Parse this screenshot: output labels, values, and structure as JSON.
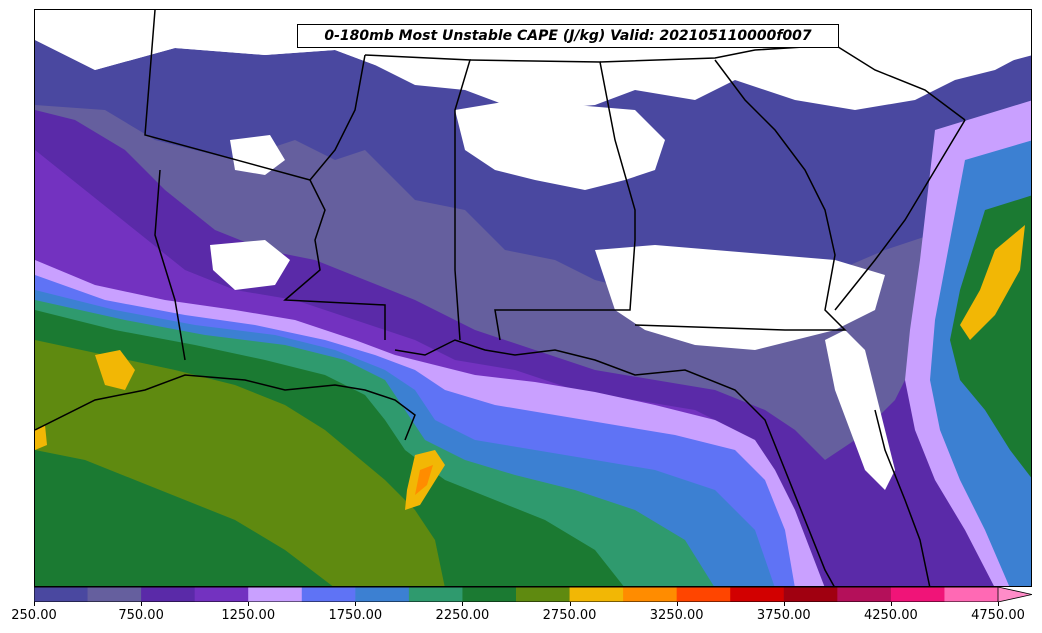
{
  "map": {
    "title": "0-180mb Most Unstable CAPE (J/kg) Valid: 202105110000f007",
    "colors": {
      "c250": "#4a48a0",
      "c500": "#655f9e",
      "c750": "#5a2aa8",
      "c1000": "#7332c0",
      "c1250": "#c9a0ff",
      "c1500": "#5f73f5",
      "c1750": "#3c80d2",
      "c2000": "#2f9a6e",
      "c2250": "#1b7a32",
      "c2500": "#5f8a10",
      "c2750": "#f2b705",
      "c3000": "#ff8c00",
      "c3250": "#ff4500",
      "c3500": "#d20000",
      "c3750": "#a00010",
      "c4000": "#b4105a",
      "c4250": "#f01478",
      "c4500": "#ff69b4",
      "border": "#000000"
    }
  },
  "colorbar": {
    "levels": [
      250,
      500,
      750,
      1000,
      1250,
      1500,
      1750,
      2000,
      2250,
      2500,
      2750,
      3000,
      3250,
      3500,
      3750,
      4000,
      4250,
      4500,
      4750
    ],
    "colors": [
      "#4a48a0",
      "#655f9e",
      "#5a2aa8",
      "#7332c0",
      "#c9a0ff",
      "#5f73f5",
      "#3c80d2",
      "#2f9a6e",
      "#1b7a32",
      "#5f8a10",
      "#f2b705",
      "#ff8c00",
      "#ff4500",
      "#d20000",
      "#a00010",
      "#b4105a",
      "#f01478",
      "#ff69b4"
    ],
    "extend_color": "#ff8cc8",
    "tick_labels": [
      "250.00",
      "750.00",
      "1250.00",
      "1750.00",
      "2250.00",
      "2750.00",
      "3250.00",
      "3750.00",
      "4250.00",
      "4750.00"
    ],
    "tick_values": [
      250,
      750,
      1250,
      1750,
      2250,
      2750,
      3250,
      3750,
      4250,
      4750
    ]
  }
}
